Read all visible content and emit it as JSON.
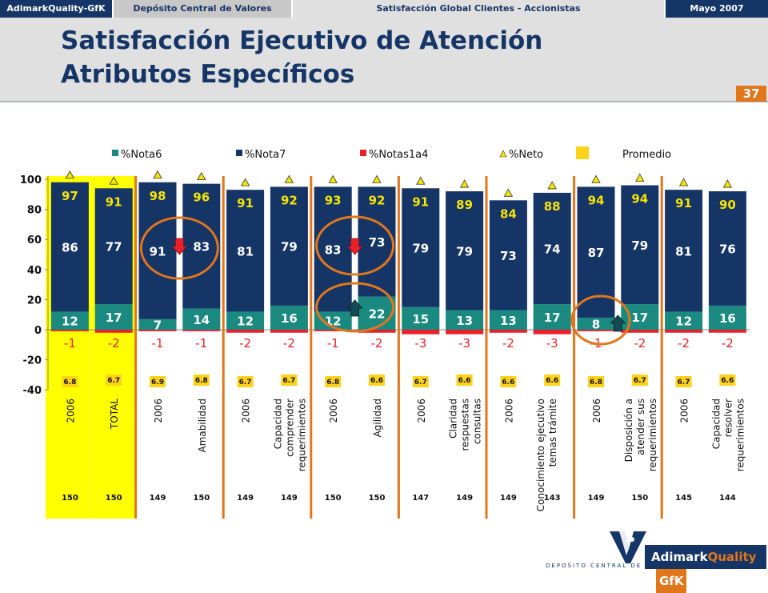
{
  "topbar": {
    "brand": "AdimarkQuality-GfK",
    "client": "Depósito Central de Valores",
    "study": "Satisfacción Global Clientes - Accionistas",
    "date": "Mayo 2007"
  },
  "title_line1": "Satisfacción Ejecutivo de Atención",
  "title_line2": "Atributos Específicos",
  "page_number": "37",
  "footer": {
    "dcv_text": "DEPOSITO CENTRAL DE VALORES",
    "logo_adimark": "Adimark",
    "logo_quality": "Quality",
    "logo_gfk": "GfK"
  },
  "colors": {
    "nota6": "#1a8a80",
    "nota7": "#153566",
    "notas1a4": "#e8202a",
    "neto": "#f5e400",
    "promedio": "#ffd21a",
    "highlight": "#ffff00",
    "separator": "#e2761b"
  },
  "chart_data": {
    "type": "bar",
    "ylim": [
      -40,
      100
    ],
    "yticks": [
      100,
      80,
      60,
      40,
      20,
      0,
      -20,
      -40
    ],
    "grid": false,
    "legend": {
      "placement": "top",
      "entries": [
        "%Nota6",
        "%Nota7",
        "%Notas1a4",
        "%Neto",
        "Promedio"
      ]
    },
    "categories": [
      "2006",
      "TOTAL",
      "2006",
      "Amabilidad",
      "2006",
      "Capacidad comprender requerimientos",
      "2006",
      "Agilidad",
      "2006",
      "Claridad respuestas consultas",
      "2006",
      "Conocimiento ejecutivo temas trámite",
      "2006",
      "Disposición a atender sus requerimientos",
      "2006",
      "Capacidad resolver requerimientos"
    ],
    "series": [
      {
        "name": "%Nota6",
        "values": [
          12,
          17,
          7,
          14,
          12,
          16,
          12,
          22,
          15,
          13,
          13,
          17,
          8,
          17,
          12,
          16
        ]
      },
      {
        "name": "%Nota7",
        "values": [
          86,
          77,
          91,
          83,
          81,
          79,
          83,
          73,
          79,
          79,
          73,
          74,
          87,
          79,
          81,
          76
        ]
      },
      {
        "name": "%Notas1a4",
        "values": [
          -1,
          -2,
          -1,
          -1,
          -2,
          -2,
          -1,
          -2,
          -3,
          -3,
          -2,
          -3,
          -1,
          -2,
          -2,
          -2
        ]
      },
      {
        "name": "%Neto",
        "values": [
          97,
          91,
          98,
          96,
          91,
          92,
          93,
          92,
          91,
          89,
          84,
          88,
          94,
          94,
          91,
          90
        ]
      },
      {
        "name": "Promedio",
        "values": [
          6.8,
          6.7,
          6.9,
          6.8,
          6.7,
          6.7,
          6.8,
          6.6,
          6.7,
          6.6,
          6.6,
          6.6,
          6.8,
          6.7,
          6.7,
          6.6
        ]
      }
    ],
    "base_n": [
      150,
      150,
      149,
      150,
      149,
      149,
      150,
      150,
      147,
      149,
      149,
      143,
      149,
      150,
      145,
      144
    ],
    "highlighted_categories": [
      0,
      1
    ],
    "arrows": [
      {
        "category": 2,
        "direction": "down",
        "color": "red"
      },
      {
        "category": 6,
        "direction": "down",
        "color": "red"
      },
      {
        "category": 6,
        "direction": "up",
        "color": "teal"
      },
      {
        "category": 12,
        "direction": "up",
        "color": "teal"
      }
    ],
    "circled": [
      {
        "categories": [
          2,
          3
        ]
      },
      {
        "categories": [
          6,
          7
        ],
        "series": "%Nota7"
      },
      {
        "categories": [
          6,
          7
        ],
        "series": "%Nota6"
      },
      {
        "categories": [
          12
        ],
        "series": "%Nota6"
      }
    ]
  }
}
